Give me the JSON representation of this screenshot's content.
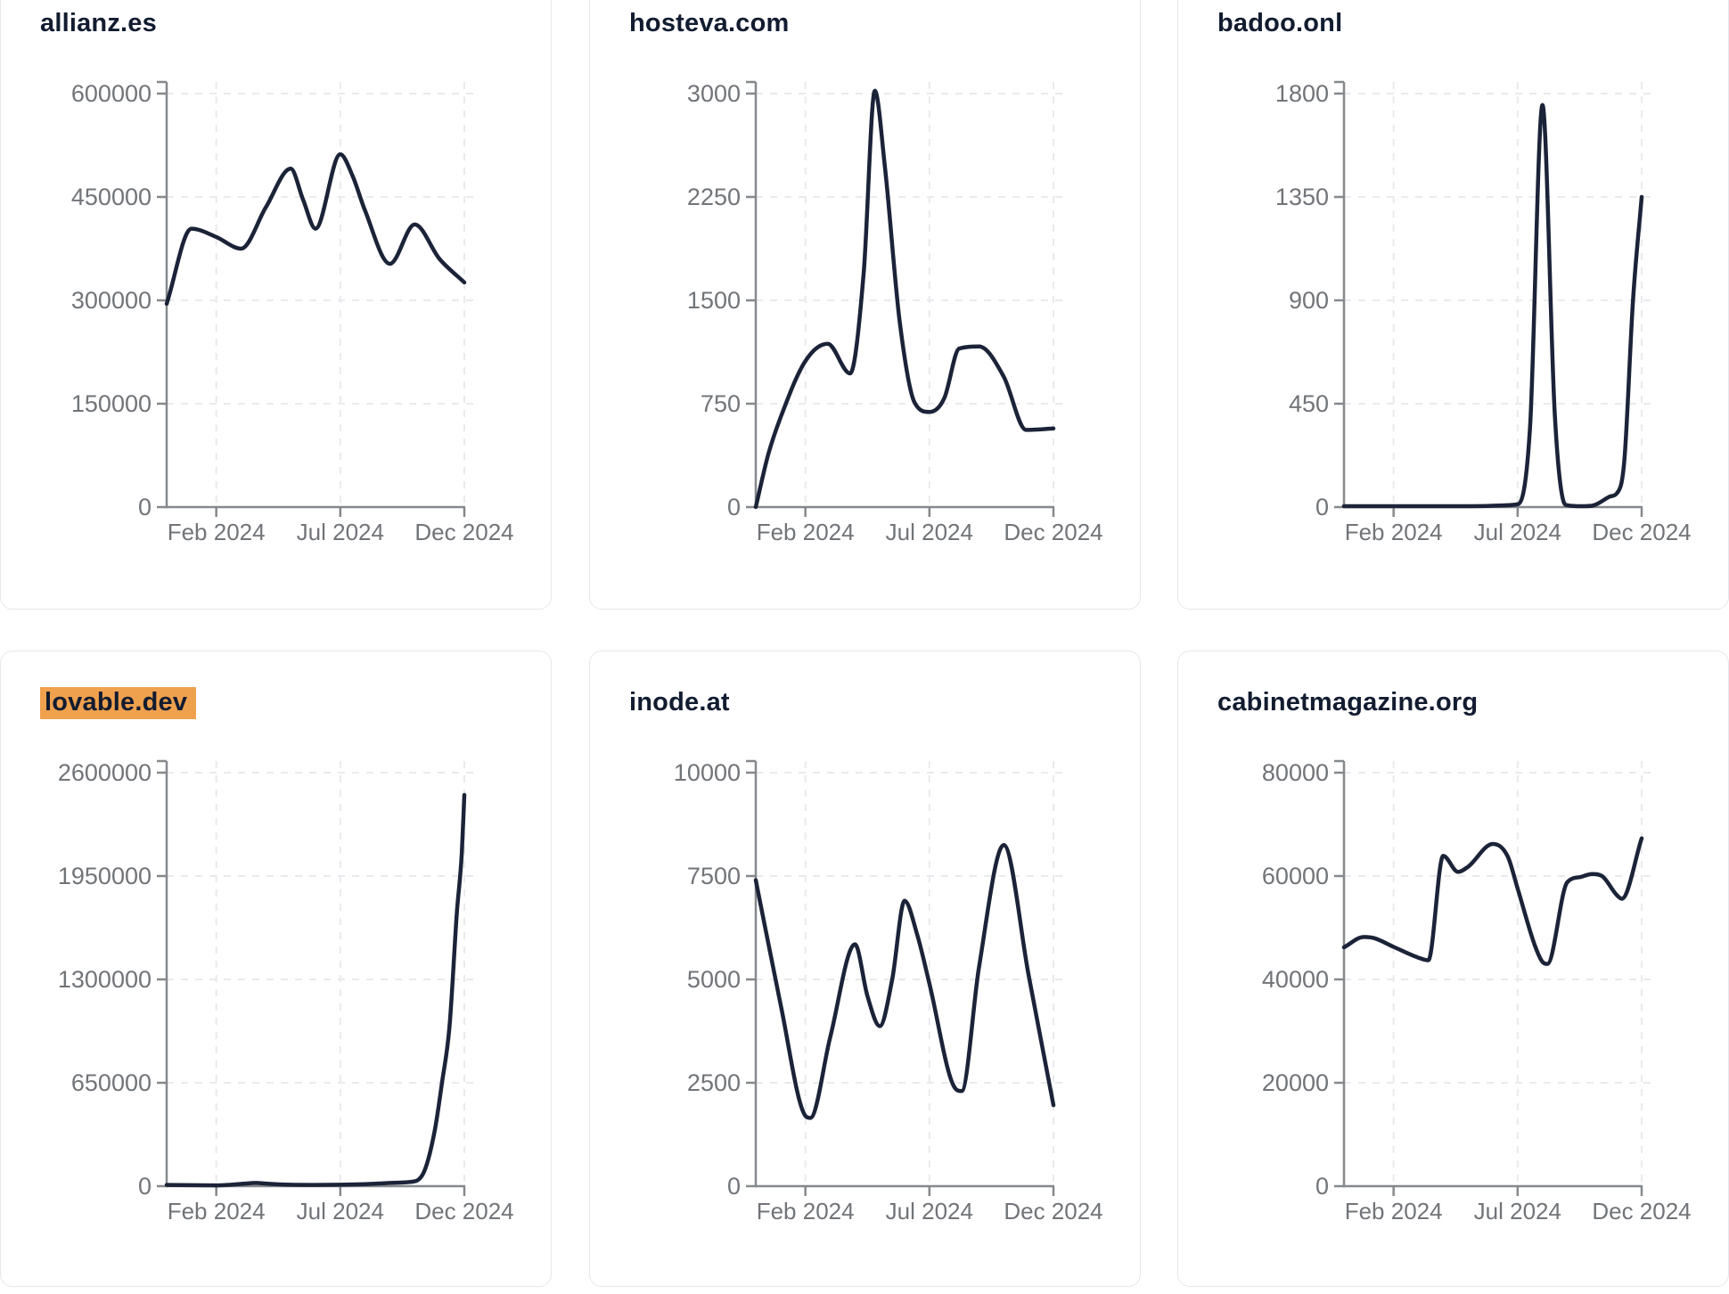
{
  "page": {
    "kind": "traffic-dashboard-grid",
    "colors": {
      "title": "#121c30",
      "line": "#1b2338",
      "axis": "#85888c",
      "tick_labels": "#717478",
      "gridlines": "#e9eaed",
      "card_border": "#e5e8ed",
      "highlight": "#efa14e",
      "background": "#ffffff"
    }
  },
  "chart_data": [
    {
      "type": "line",
      "title": "allianz.es",
      "highlighted": false,
      "x_axis": {
        "tick_labels": [
          "Feb 2024",
          "Jul 2024",
          "Dec 2024"
        ],
        "tick_positions_months": [
          2,
          7,
          12
        ],
        "range_months": [
          "Dec 2023",
          "Dec 2024"
        ]
      },
      "y_axis": {
        "tick_labels": [
          "0",
          "150000",
          "300000",
          "450000",
          "600000"
        ],
        "tick_step": 150000,
        "max_tick": 600000
      },
      "series": [
        [
          0,
          295000
        ],
        [
          1,
          404000
        ],
        [
          2,
          392000
        ],
        [
          3,
          375000
        ],
        [
          4,
          435000
        ],
        [
          5,
          491000
        ],
        [
          5.5,
          446000
        ],
        [
          6,
          404000
        ],
        [
          7,
          512000
        ],
        [
          7.5,
          480000
        ],
        [
          8,
          430000
        ],
        [
          9,
          353000
        ],
        [
          10,
          410000
        ],
        [
          11,
          360000
        ],
        [
          12,
          326000
        ]
      ]
    },
    {
      "type": "line",
      "title": "hosteva.com",
      "highlighted": false,
      "x_axis": {
        "tick_labels": [
          "Feb 2024",
          "Jul 2024",
          "Dec 2024"
        ],
        "tick_positions_months": [
          2,
          7,
          12
        ],
        "range_months": [
          "Dec 2023",
          "Dec 2024"
        ]
      },
      "y_axis": {
        "tick_labels": [
          "0",
          "750",
          "1500",
          "2250",
          "3000"
        ],
        "tick_step": 750,
        "max_tick": 3000
      },
      "series": [
        [
          0,
          0
        ],
        [
          0.5,
          380
        ],
        [
          1,
          650
        ],
        [
          2,
          1060
        ],
        [
          2.9,
          1185
        ],
        [
          3.8,
          970
        ],
        [
          4.35,
          1700
        ],
        [
          4.8,
          3020
        ],
        [
          5.2,
          2480
        ],
        [
          5.8,
          1350
        ],
        [
          6.4,
          760
        ],
        [
          7,
          690
        ],
        [
          7.6,
          790
        ],
        [
          8.2,
          1150
        ],
        [
          9,
          1165
        ],
        [
          10,
          945
        ],
        [
          10.9,
          560
        ],
        [
          12,
          570
        ]
      ]
    },
    {
      "type": "line",
      "title": "badoo.onl",
      "highlighted": false,
      "x_axis": {
        "tick_labels": [
          "Feb 2024",
          "Jul 2024",
          "Dec 2024"
        ],
        "tick_positions_months": [
          2,
          7,
          12
        ],
        "range_months": [
          "Dec 2023",
          "Dec 2024"
        ]
      },
      "y_axis": {
        "tick_labels": [
          "0",
          "450",
          "900",
          "1350",
          "1800"
        ],
        "tick_step": 450,
        "max_tick": 1800
      },
      "series": [
        [
          0,
          4
        ],
        [
          1,
          4
        ],
        [
          2,
          4
        ],
        [
          3,
          4
        ],
        [
          4,
          4
        ],
        [
          5,
          4
        ],
        [
          6,
          6
        ],
        [
          7,
          12
        ],
        [
          7.5,
          350
        ],
        [
          8,
          1750
        ],
        [
          8.5,
          400
        ],
        [
          8.85,
          25
        ],
        [
          9,
          8
        ],
        [
          9.6,
          4
        ],
        [
          10,
          6
        ],
        [
          10.7,
          45
        ],
        [
          11,
          60
        ],
        [
          11.3,
          200
        ],
        [
          11.65,
          900
        ],
        [
          12,
          1350
        ]
      ]
    },
    {
      "type": "line",
      "title": "lovable.dev",
      "highlighted": true,
      "x_axis": {
        "tick_labels": [
          "Feb 2024",
          "Jul 2024",
          "Dec 2024"
        ],
        "tick_positions_months": [
          2,
          7,
          12
        ],
        "range_months": [
          "Dec 2023",
          "Dec 2024"
        ]
      },
      "y_axis": {
        "tick_labels": [
          "0",
          "650000",
          "1300000",
          "1950000",
          "2600000"
        ],
        "tick_step": 650000,
        "max_tick": 2600000
      },
      "series": [
        [
          0,
          8000
        ],
        [
          1,
          6000
        ],
        [
          2,
          5000
        ],
        [
          3,
          14000
        ],
        [
          3.6,
          20000
        ],
        [
          4,
          16000
        ],
        [
          5,
          9000
        ],
        [
          6,
          8000
        ],
        [
          7,
          9000
        ],
        [
          8,
          13000
        ],
        [
          9,
          20000
        ],
        [
          10,
          30000
        ],
        [
          10.4,
          100000
        ],
        [
          10.8,
          344000
        ],
        [
          11.1,
          650000
        ],
        [
          11.4,
          1000000
        ],
        [
          11.7,
          1720000
        ],
        [
          11.9,
          2100000
        ],
        [
          12,
          2460000
        ]
      ]
    },
    {
      "type": "line",
      "title": "inode.at",
      "highlighted": false,
      "x_axis": {
        "tick_labels": [
          "Feb 2024",
          "Jul 2024",
          "Dec 2024"
        ],
        "tick_positions_months": [
          2,
          7,
          12
        ],
        "range_months": [
          "Dec 2023",
          "Dec 2024"
        ]
      },
      "y_axis": {
        "tick_labels": [
          "0",
          "2500",
          "5000",
          "7500",
          "10000"
        ],
        "tick_step": 2500,
        "max_tick": 10000
      },
      "series": [
        [
          0,
          7400
        ],
        [
          1,
          4400
        ],
        [
          2,
          1700
        ],
        [
          2.2,
          1650
        ],
        [
          3,
          3600
        ],
        [
          4,
          5850
        ],
        [
          4.5,
          4600
        ],
        [
          5,
          3870
        ],
        [
          5.5,
          5000
        ],
        [
          6,
          6900
        ],
        [
          6.5,
          6100
        ],
        [
          7,
          4900
        ],
        [
          8,
          2400
        ],
        [
          8.3,
          2300
        ],
        [
          9,
          5300
        ],
        [
          10,
          8250
        ],
        [
          11,
          5100
        ],
        [
          12,
          1960
        ]
      ]
    },
    {
      "type": "line",
      "title": "cabinetmagazine.org",
      "highlighted": false,
      "x_axis": {
        "tick_labels": [
          "Feb 2024",
          "Jul 2024",
          "Dec 2024"
        ],
        "tick_positions_months": [
          2,
          7,
          12
        ],
        "range_months": [
          "Dec 2023",
          "Dec 2024"
        ]
      },
      "y_axis": {
        "tick_labels": [
          "0",
          "20000",
          "40000",
          "60000",
          "80000"
        ],
        "tick_step": 20000,
        "max_tick": 80000
      },
      "series": [
        [
          0,
          46200
        ],
        [
          0.8,
          48200
        ],
        [
          1.2,
          48000
        ],
        [
          2,
          46300
        ],
        [
          3,
          44200
        ],
        [
          3.4,
          43700
        ],
        [
          4,
          63900
        ],
        [
          4.6,
          60800
        ],
        [
          5,
          61800
        ],
        [
          6,
          66200
        ],
        [
          6.6,
          63800
        ],
        [
          7,
          57600
        ],
        [
          7.7,
          46500
        ],
        [
          8,
          43400
        ],
        [
          8.2,
          43000
        ],
        [
          9,
          58800
        ],
        [
          9.6,
          59900
        ],
        [
          10,
          60400
        ],
        [
          10.4,
          60000
        ],
        [
          11,
          56300
        ],
        [
          11.2,
          55600
        ],
        [
          12,
          67300
        ]
      ]
    }
  ]
}
